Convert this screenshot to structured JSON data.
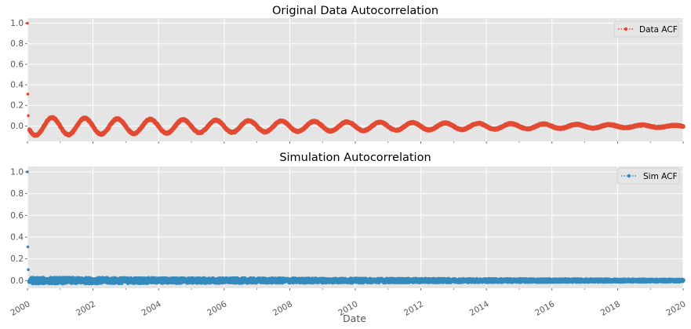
{
  "chart_data": [
    {
      "type": "line",
      "title": "Original Data Autocorrelation",
      "xlabel": "",
      "ylabel": "",
      "xlim": [
        "2000",
        "2020"
      ],
      "ylim": [
        -0.15,
        1.05
      ],
      "grid": true,
      "legend": "top-right",
      "style": "dotted line with dot markers",
      "color": "#E24A33",
      "x_ticks": [
        "2000",
        "2002",
        "2004",
        "2006",
        "2008",
        "2010",
        "2012",
        "2014",
        "2016",
        "2018",
        "2020"
      ],
      "y_ticks": [
        "0.0",
        "0.2",
        "0.4",
        "0.6",
        "0.8",
        "1.0"
      ],
      "series": [
        {
          "name": "Data ACF",
          "initial_points": [
            {
              "x": "2000-01-01",
              "y": 1.0
            },
            {
              "x": "2000-01-02",
              "y": 0.31
            },
            {
              "x": "2000-01-03",
              "y": 0.1
            }
          ],
          "oscillation": {
            "period_years": 1.0,
            "start_amplitude": 0.09,
            "end_amplitude": 0.008,
            "first_peak": "2000-10-01",
            "description_values": [
              {
                "x": "2000-09-15",
                "y": 0.08
              },
              {
                "x": "2001-03-01",
                "y": -0.08
              },
              {
                "x": "2001-10-01",
                "y": 0.07
              },
              {
                "x": "2002-04-01",
                "y": -0.07
              },
              {
                "x": "2005-01-01",
                "y": 0.05
              },
              {
                "x": "2010-01-01",
                "y": 0.04
              },
              {
                "x": "2015-01-01",
                "y": 0.015
              },
              {
                "x": "2019-12-31",
                "y": -0.01
              }
            ]
          }
        }
      ]
    },
    {
      "type": "line",
      "title": "Simulation Autocorrelation",
      "xlabel": "Date",
      "ylabel": "",
      "xlim": [
        "2000",
        "2020"
      ],
      "ylim": [
        -0.07,
        1.05
      ],
      "grid": true,
      "legend": "top-right",
      "style": "dotted line with dot markers",
      "color": "#348ABD",
      "x_ticks": [
        "2000",
        "2002",
        "2004",
        "2006",
        "2008",
        "2010",
        "2012",
        "2014",
        "2016",
        "2018",
        "2020"
      ],
      "y_ticks": [
        "0.0",
        "0.2",
        "0.4",
        "0.6",
        "0.8",
        "1.0"
      ],
      "series": [
        {
          "name": "Sim ACF",
          "initial_points": [
            {
              "x": "2000-01-01",
              "y": 1.0
            },
            {
              "x": "2000-01-02",
              "y": 0.31
            },
            {
              "x": "2000-01-03",
              "y": 0.1
            }
          ],
          "noise": {
            "center": 0.0,
            "start_band": 0.025,
            "end_band": 0.008
          }
        }
      ]
    }
  ]
}
